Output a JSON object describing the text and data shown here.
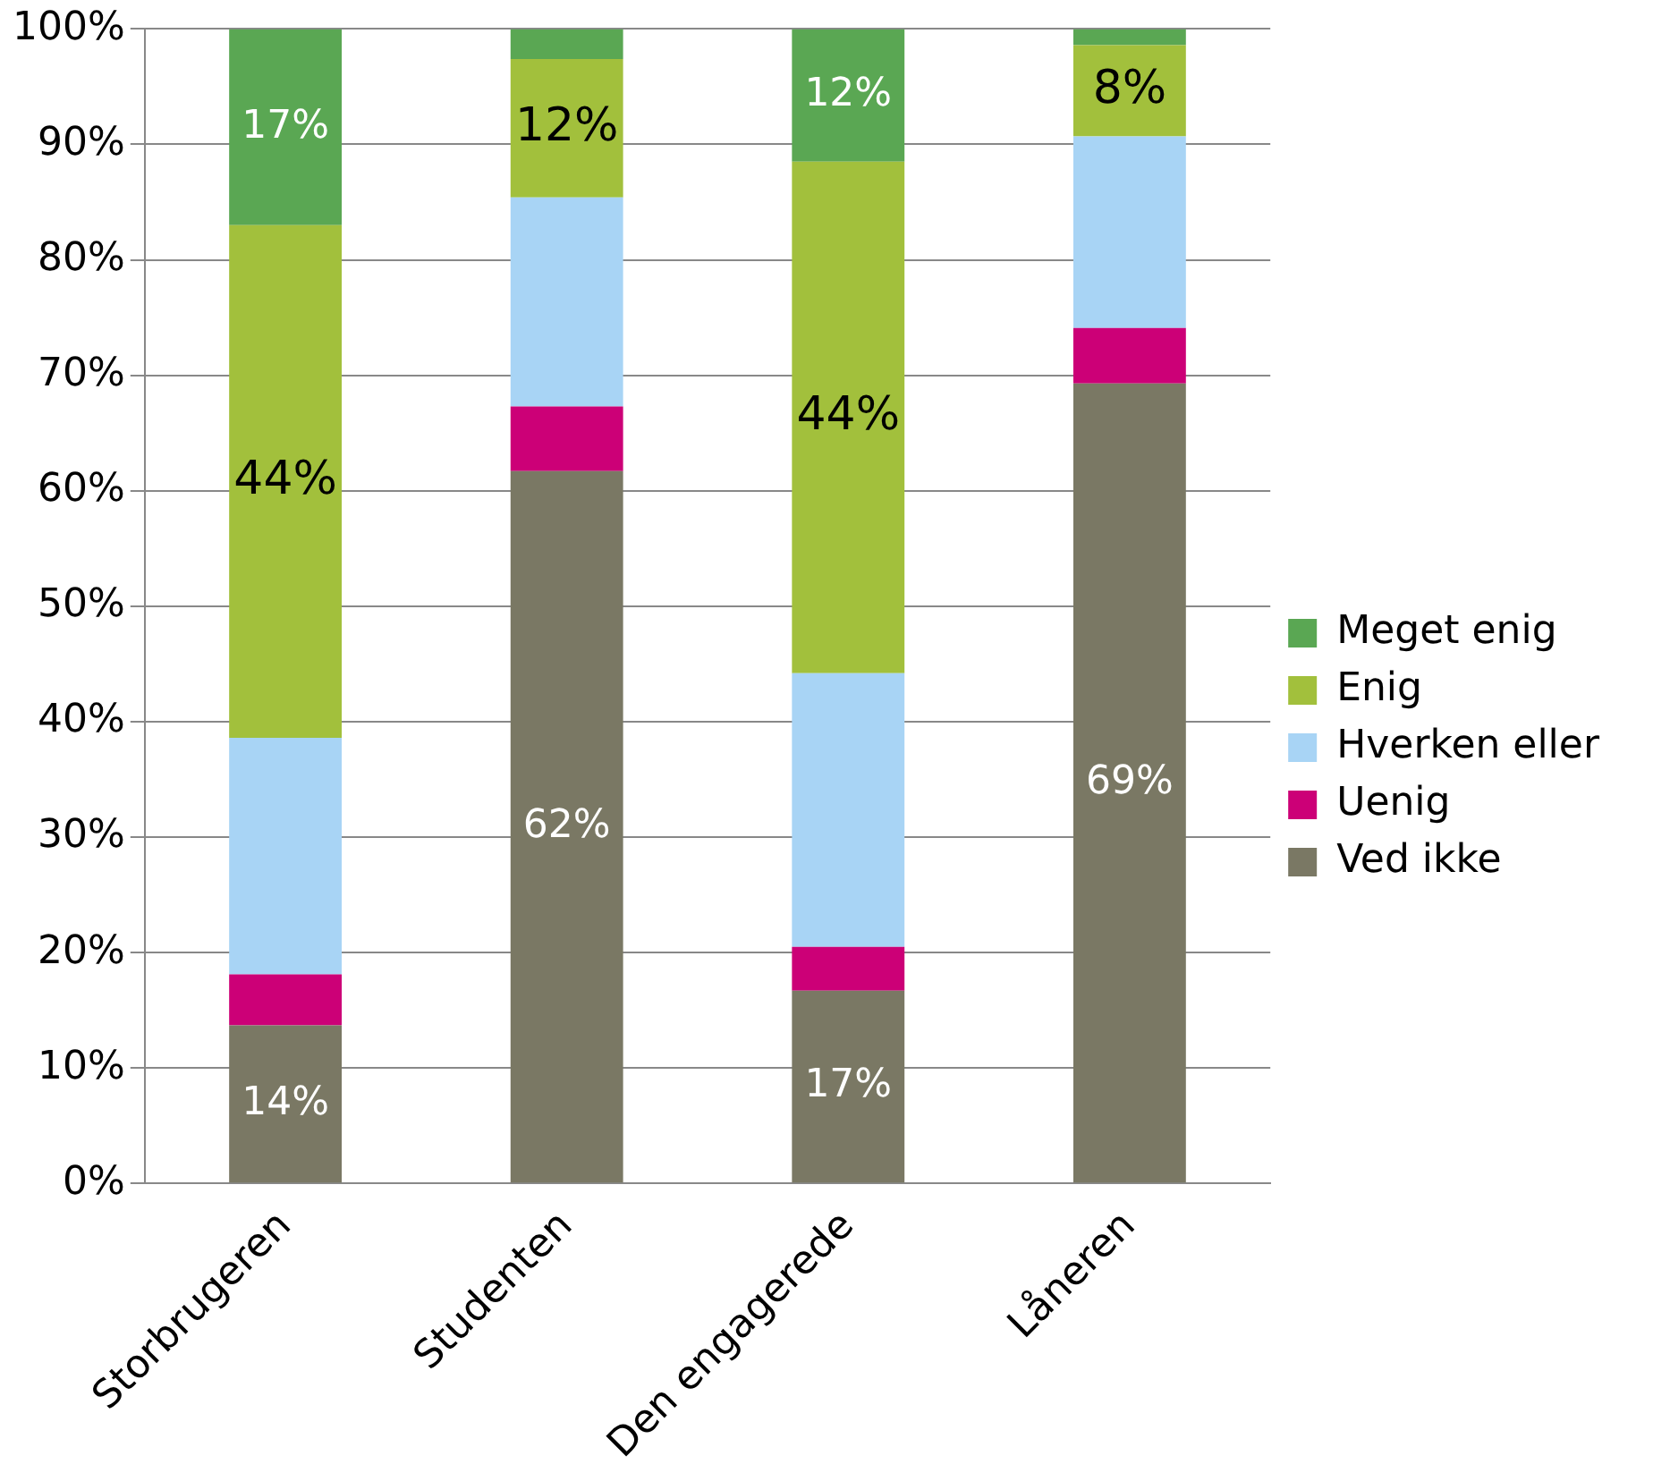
{
  "chart_data": {
    "type": "bar",
    "stacked": true,
    "categories": [
      "Storbrugeren",
      "Studenten",
      "Den engagerede",
      "Låneren"
    ],
    "series": [
      {
        "name": "Ved ikke",
        "color": "#7a7864",
        "values": [
          13.7,
          61.7,
          16.7,
          69.3
        ],
        "value_labels": [
          "14%",
          "62%",
          "17%",
          "69%"
        ]
      },
      {
        "name": "Uenig",
        "color": "#cc0077",
        "values": [
          4.4,
          5.6,
          3.8,
          4.8
        ]
      },
      {
        "name": "Hverken eller",
        "color": "#a8d4f5",
        "values": [
          20.5,
          18.1,
          23.7,
          16.6
        ]
      },
      {
        "name": "Enig",
        "color": "#a2c03c",
        "values": [
          44.4,
          12,
          44.3,
          7.9
        ],
        "value_labels": [
          "44%",
          "12%",
          "44%",
          "8%"
        ]
      },
      {
        "name": "Meget enig",
        "color": "#5aa753",
        "values": [
          17,
          2.6,
          11.5,
          1.4
        ],
        "value_labels": [
          "17%",
          null,
          "12%",
          null
        ]
      }
    ],
    "ylim": [
      0,
      100
    ],
    "yticks": [
      {
        "value": 0,
        "label": "0%"
      },
      {
        "value": 10,
        "label": "10%"
      },
      {
        "value": 20,
        "label": "20%"
      },
      {
        "value": 30,
        "label": "30%"
      },
      {
        "value": 40,
        "label": "40%"
      },
      {
        "value": 50,
        "label": "50%"
      },
      {
        "value": 60,
        "label": "60%"
      },
      {
        "value": 70,
        "label": "70%"
      },
      {
        "value": 80,
        "label": "80%"
      },
      {
        "value": 90,
        "label": "90%"
      },
      {
        "value": 100,
        "label": "100%"
      }
    ],
    "grid": "y",
    "legend": "right"
  }
}
